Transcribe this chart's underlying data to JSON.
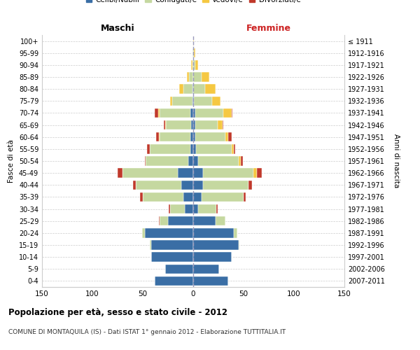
{
  "age_groups": [
    "0-4",
    "5-9",
    "10-14",
    "15-19",
    "20-24",
    "25-29",
    "30-34",
    "35-39",
    "40-44",
    "45-49",
    "50-54",
    "55-59",
    "60-64",
    "65-69",
    "70-74",
    "75-79",
    "80-84",
    "85-89",
    "90-94",
    "95-99",
    "100+"
  ],
  "birth_years": [
    "2007-2011",
    "2002-2006",
    "1997-2001",
    "1992-1996",
    "1987-1991",
    "1982-1986",
    "1977-1981",
    "1972-1976",
    "1967-1971",
    "1962-1966",
    "1957-1961",
    "1952-1956",
    "1947-1951",
    "1942-1946",
    "1937-1941",
    "1932-1936",
    "1927-1931",
    "1922-1926",
    "1917-1921",
    "1912-1916",
    "≤ 1911"
  ],
  "males": {
    "celibe": [
      38,
      28,
      42,
      42,
      48,
      25,
      8,
      10,
      12,
      15,
      5,
      3,
      3,
      2,
      3,
      1,
      1,
      0,
      0,
      0,
      0
    ],
    "coniugato": [
      0,
      0,
      0,
      1,
      3,
      8,
      15,
      40,
      45,
      55,
      42,
      40,
      30,
      25,
      30,
      20,
      9,
      4,
      1,
      1,
      0
    ],
    "vedovo": [
      0,
      0,
      0,
      0,
      0,
      0,
      0,
      0,
      0,
      0,
      0,
      0,
      1,
      1,
      2,
      2,
      4,
      2,
      1,
      0,
      0
    ],
    "divorziato": [
      0,
      0,
      0,
      0,
      0,
      1,
      1,
      3,
      3,
      5,
      1,
      3,
      3,
      1,
      3,
      0,
      0,
      0,
      0,
      0,
      0
    ]
  },
  "females": {
    "nubile": [
      35,
      26,
      38,
      45,
      40,
      22,
      5,
      8,
      10,
      10,
      5,
      3,
      2,
      2,
      2,
      1,
      0,
      0,
      0,
      0,
      0
    ],
    "coniugata": [
      0,
      0,
      0,
      1,
      4,
      10,
      18,
      42,
      45,
      50,
      40,
      35,
      30,
      22,
      28,
      18,
      12,
      8,
      2,
      1,
      0
    ],
    "vedova": [
      0,
      0,
      0,
      0,
      0,
      0,
      0,
      0,
      0,
      3,
      2,
      2,
      3,
      5,
      8,
      8,
      10,
      8,
      3,
      1,
      1
    ],
    "divorziata": [
      0,
      0,
      0,
      0,
      0,
      0,
      1,
      2,
      3,
      5,
      2,
      2,
      3,
      1,
      1,
      0,
      0,
      0,
      0,
      0,
      0
    ]
  },
  "colors": {
    "celibe": "#3a6ea5",
    "coniugato": "#c5d8a0",
    "vedovo": "#f5c842",
    "divorziato": "#c0392b"
  },
  "xlim": 150,
  "title": "Popolazione per età, sesso e stato civile - 2012",
  "subtitle": "COMUNE DI MONTAQUILA (IS) - Dati ISTAT 1° gennaio 2012 - Elaborazione TUTTITALIA.IT",
  "ylabel_left": "Fasce di età",
  "ylabel_right": "Anni di nascita",
  "xlabel_left": "Maschi",
  "xlabel_right": "Femmine"
}
